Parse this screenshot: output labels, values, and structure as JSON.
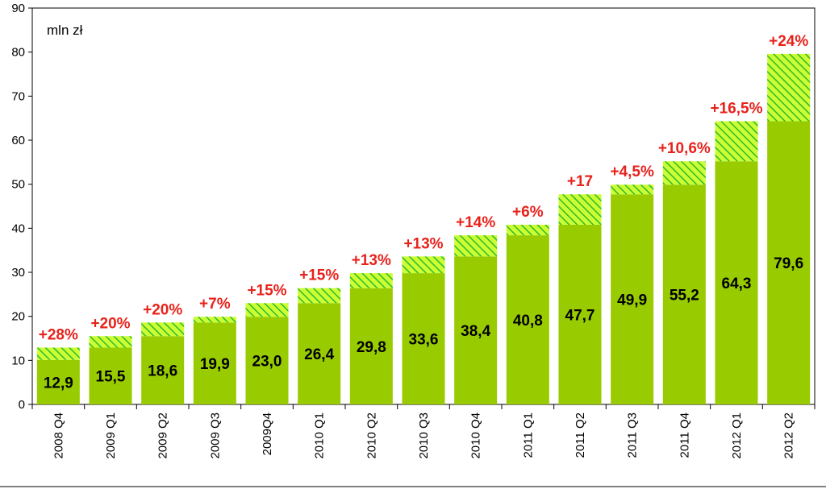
{
  "chart_data": {
    "type": "bar",
    "unit_label": "mln zł",
    "categories": [
      "2008 Q4",
      "2009 Q1",
      "2009 Q2",
      "2009 Q3",
      "2009Q4",
      "2010 Q1",
      "2010 Q2",
      "2010 Q3",
      "2010 Q4",
      "2011 Q1",
      "2011 Q2",
      "2011 Q3",
      "2011 Q4",
      "2012 Q1",
      "2012 Q2"
    ],
    "values": [
      12.9,
      15.5,
      18.6,
      19.9,
      23.0,
      26.4,
      29.8,
      33.6,
      38.4,
      40.8,
      47.7,
      49.9,
      55.2,
      64.3,
      79.6
    ],
    "value_labels": [
      "12,9",
      "15,5",
      "18,6",
      "19,9",
      "23,0",
      "26,4",
      "29,8",
      "33,6",
      "38,4",
      "40,8",
      "47,7",
      "49,9",
      "55,2",
      "64,3",
      "79,6"
    ],
    "growth_labels": [
      "+28%",
      "+20%",
      "+20%",
      "+7%",
      "+15%",
      "+15%",
      "+13%",
      "+13%",
      "+14%",
      "+6%",
      "+17",
      "+4,5%",
      "+10,6%",
      "+16,5%",
      "+24%"
    ],
    "base_values": [
      10.1,
      12.9,
      15.5,
      18.6,
      19.9,
      23.0,
      26.4,
      29.8,
      33.6,
      38.4,
      40.8,
      47.7,
      49.9,
      55.2,
      64.3
    ],
    "yticks": [
      0,
      10,
      20,
      30,
      40,
      50,
      60,
      70,
      80,
      90
    ],
    "ylim": [
      0,
      90
    ],
    "grid": false,
    "colors": {
      "bar": "#99cc00",
      "hatch_bg": "#ccff33",
      "hatch_line": "#2db82d",
      "growth_text": "#e8221b",
      "axis": "#000000"
    }
  }
}
